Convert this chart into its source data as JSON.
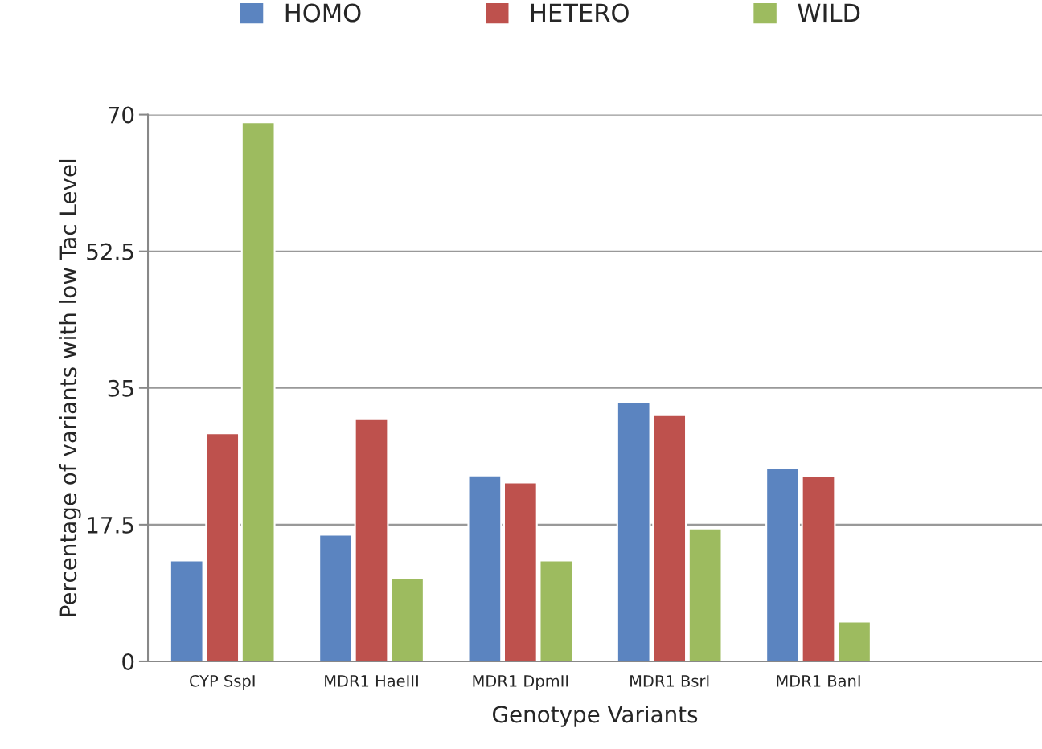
{
  "chart_data": {
    "type": "bar",
    "xlabel": "Genotype Variants",
    "ylabel": "Percentage of variants with low Tac Level",
    "categories": [
      "CYP SspI",
      "MDR1 HaeIII",
      "MDR1 DpmII",
      "MDR1 BsrI",
      "MDR1 BanI",
      null
    ],
    "series": [
      {
        "name": "HOMO",
        "color": "#5b84c0",
        "values": [
          12.9,
          16.2,
          23.8,
          33.2,
          24.8,
          null
        ]
      },
      {
        "name": "HETERO",
        "color": "#be514d",
        "values": [
          29.2,
          31.1,
          22.9,
          31.5,
          23.7,
          null
        ]
      },
      {
        "name": "WILD",
        "color": "#9dbb5f",
        "values": [
          69.0,
          10.6,
          12.9,
          17.0,
          5.1,
          null
        ]
      }
    ],
    "ylim": [
      0,
      70
    ],
    "yticks": [
      0,
      17.5,
      35,
      52.5,
      70
    ],
    "grid": "y",
    "legend": "top"
  }
}
